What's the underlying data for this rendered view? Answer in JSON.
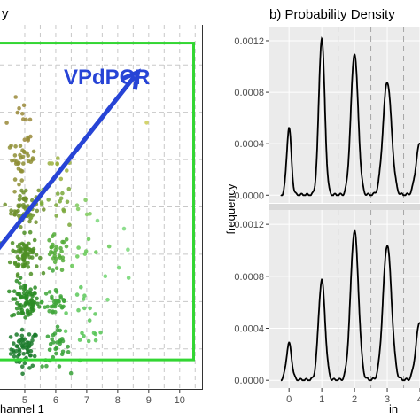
{
  "chart_data": [
    {
      "type": "scatter",
      "title": "",
      "xlabel": "hannel 1",
      "ylabel": "",
      "x_ticks": [
        "5",
        "6",
        "7",
        "8",
        "9",
        "10"
      ],
      "xlim": [
        4.2,
        10.75
      ],
      "ylim": [
        0,
        100
      ],
      "grid": true,
      "annotation": {
        "label": "VPdPCR",
        "arrow_from": [
          4.1,
          38
        ],
        "arrow_to": [
          8.65,
          87
        ],
        "color": "#2744d6"
      },
      "box": {
        "x": [
          4.2,
          10.45
        ],
        "y": [
          8,
          95
        ],
        "color": "#33d633"
      },
      "clusters": [
        {
          "x": 5.0,
          "y": 11,
          "n": 60,
          "color": "#1a7a2a"
        },
        {
          "x": 5.0,
          "y": 24,
          "n": 75,
          "color": "#2a8c25"
        },
        {
          "x": 5.0,
          "y": 37,
          "n": 70,
          "color": "#4e8f25"
        },
        {
          "x": 5.0,
          "y": 50,
          "n": 55,
          "color": "#6f8f2c"
        },
        {
          "x": 4.9,
          "y": 63,
          "n": 35,
          "color": "#8f8f35"
        },
        {
          "x": 4.9,
          "y": 74,
          "n": 12,
          "color": "#9a8a3a"
        },
        {
          "x": 6.0,
          "y": 11,
          "n": 30,
          "color": "#35a035"
        },
        {
          "x": 6.0,
          "y": 24,
          "n": 35,
          "color": "#3fa63a"
        },
        {
          "x": 6.0,
          "y": 37,
          "n": 30,
          "color": "#52ab37"
        },
        {
          "x": 6.0,
          "y": 50,
          "n": 18,
          "color": "#7aa83a"
        },
        {
          "x": 6.1,
          "y": 63,
          "n": 8,
          "color": "#9ab040"
        },
        {
          "x": 7.0,
          "y": 11,
          "n": 10,
          "color": "#55c455"
        },
        {
          "x": 7.0,
          "y": 24,
          "n": 10,
          "color": "#5cc85a"
        },
        {
          "x": 7.0,
          "y": 37,
          "n": 8,
          "color": "#66c956"
        },
        {
          "x": 7.0,
          "y": 50,
          "n": 5,
          "color": "#7dc95a"
        },
        {
          "x": 8.0,
          "y": 30,
          "n": 4,
          "color": "#6fd66f"
        },
        {
          "x": 8.2,
          "y": 43,
          "n": 3,
          "color": "#7ad87a"
        },
        {
          "x": 8.6,
          "y": 67,
          "n": 1,
          "color": "#cccc55"
        }
      ],
      "colors": {
        "frame": "#33d633",
        "arrow": "#2744d6",
        "grid": "#c8c8c8"
      }
    },
    {
      "type": "line",
      "title": "b) Probability Density",
      "xlabel": "in",
      "ylabel": "frequency",
      "x_ticks": [
        "0",
        "1",
        "2",
        "3",
        "4"
      ],
      "y_ticks": [
        "0.0000",
        "0.0004",
        "0.0008",
        "0.0012"
      ],
      "xlim": [
        -0.6,
        4.0
      ],
      "ylim": [
        -6e-05,
        0.00131
      ],
      "vlines_solid": [
        0.55
      ],
      "vlines_dashed": [
        1.5,
        2.5,
        3.5
      ],
      "series": [
        {
          "peaks": [
            [
              0,
              0.00052,
              0.07
            ],
            [
              1,
              0.00122,
              0.09
            ],
            [
              2,
              0.0011,
              0.11
            ],
            [
              3,
              0.00088,
              0.13
            ],
            [
              4,
              0.0004,
              0.12
            ]
          ]
        },
        {
          "peaks": [
            [
              0,
              0.00028,
              0.08
            ],
            [
              1,
              0.00077,
              0.1
            ],
            [
              2,
              0.00115,
              0.12
            ],
            [
              3,
              0.00104,
              0.13
            ],
            [
              4,
              0.00045,
              0.12
            ]
          ]
        }
      ],
      "colors": {
        "panel": "#ebebeb",
        "strip": "#d9d9d9",
        "line": "#000000",
        "vsolid": "#b3b3b3",
        "vdash": "#a6a6a6"
      }
    }
  ]
}
